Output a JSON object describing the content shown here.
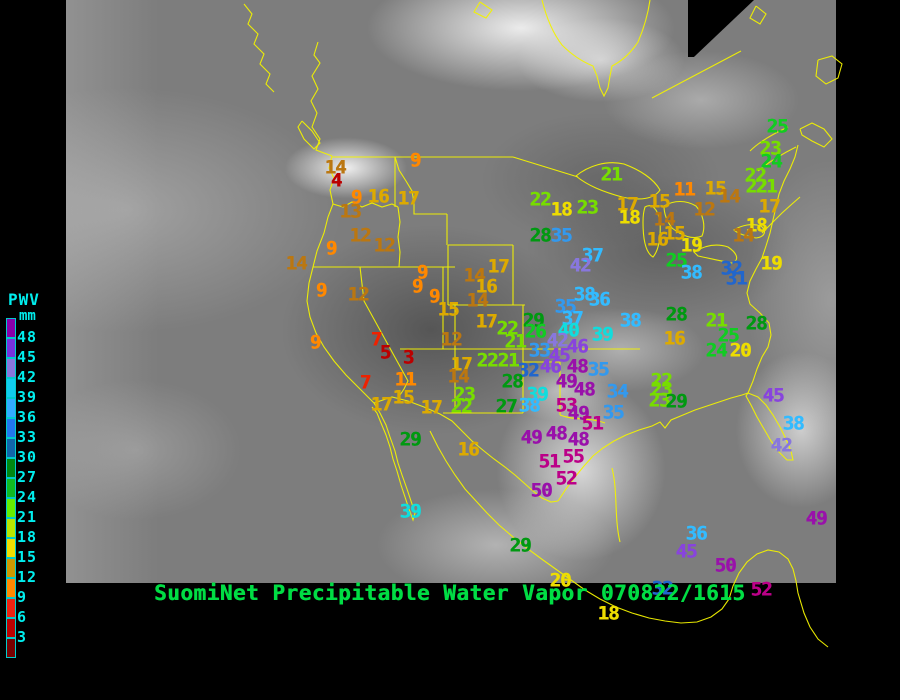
{
  "footer": {
    "title": "SuomiNet Precipitable Water Vapor",
    "timestamp": "070822/1615",
    "text_color": "#00dd44"
  },
  "colorbar": {
    "title": "PWV",
    "units": "mm",
    "label_color": "#00eeee",
    "labels": [
      48,
      45,
      42,
      39,
      36,
      33,
      30,
      27,
      24,
      21,
      18,
      15,
      12,
      9,
      6,
      3
    ],
    "swatch_colors": [
      "#8800aa",
      "#7733dd",
      "#8877dd",
      "#11ccee",
      "#33aaff",
      "#2277ee",
      "#1166aa",
      "#008811",
      "#11bb22",
      "#66ee00",
      "#b8e600",
      "#f0dd00",
      "#cc9900",
      "#ff8800",
      "#ee2211",
      "#bb0000",
      "#770000"
    ]
  },
  "map": {
    "outline_color": "#f2f200"
  },
  "pwv_palette": {
    "3": "#bb0000",
    "6": "#ee2200",
    "9": "#ff8800",
    "12": "#bb7711",
    "15": "#ddaa00",
    "18": "#eedd00",
    "21": "#77dd00",
    "24": "#11cc22",
    "27": "#009911",
    "30": "#2266cc",
    "33": "#3399ee",
    "36": "#33bbff",
    "39": "#11dddd",
    "42": "#8877dd",
    "45": "#8844dd",
    "48": "#9911aa",
    "51": "#bb0088"
  },
  "stations": [
    [
      14,
      335,
      168
    ],
    [
      4,
      336,
      181
    ],
    [
      9,
      356,
      198
    ],
    [
      16,
      378,
      197
    ],
    [
      17,
      408,
      199
    ],
    [
      13,
      350,
      212
    ],
    [
      9,
      415,
      161
    ],
    [
      12,
      360,
      236
    ],
    [
      12,
      384,
      246
    ],
    [
      9,
      331,
      249
    ],
    [
      14,
      296,
      264
    ],
    [
      9,
      321,
      291
    ],
    [
      12,
      358,
      295
    ],
    [
      9,
      422,
      273
    ],
    [
      9,
      417,
      287
    ],
    [
      9,
      434,
      297
    ],
    [
      15,
      448,
      310
    ],
    [
      14,
      474,
      276
    ],
    [
      17,
      498,
      267
    ],
    [
      16,
      486,
      287
    ],
    [
      14,
      477,
      301
    ],
    [
      17,
      486,
      322
    ],
    [
      12,
      451,
      340
    ],
    [
      17,
      461,
      365
    ],
    [
      14,
      458,
      377
    ],
    [
      9,
      315,
      343
    ],
    [
      7,
      376,
      340
    ],
    [
      5,
      385,
      353
    ],
    [
      3,
      408,
      358
    ],
    [
      11,
      405,
      380
    ],
    [
      7,
      365,
      383
    ],
    [
      15,
      403,
      398
    ],
    [
      17,
      381,
      405
    ],
    [
      17,
      431,
      408
    ],
    [
      23,
      464,
      395
    ],
    [
      22,
      461,
      407
    ],
    [
      22,
      487,
      361
    ],
    [
      21,
      508,
      361
    ],
    [
      29,
      410,
      440
    ],
    [
      16,
      468,
      450
    ],
    [
      39,
      410,
      512
    ],
    [
      29,
      520,
      546
    ],
    [
      22,
      540,
      200
    ],
    [
      18,
      561,
      210
    ],
    [
      23,
      587,
      208
    ],
    [
      21,
      611,
      175
    ],
    [
      17,
      627,
      205
    ],
    [
      18,
      629,
      218
    ],
    [
      15,
      659,
      202
    ],
    [
      14,
      664,
      220
    ],
    [
      11,
      684,
      190
    ],
    [
      12,
      704,
      210
    ],
    [
      15,
      674,
      234
    ],
    [
      16,
      657,
      240
    ],
    [
      19,
      691,
      246
    ],
    [
      28,
      540,
      236
    ],
    [
      35,
      561,
      236
    ],
    [
      37,
      592,
      256
    ],
    [
      42,
      580,
      266
    ],
    [
      25,
      676,
      261
    ],
    [
      38,
      691,
      273
    ],
    [
      38,
      584,
      295
    ],
    [
      36,
      599,
      300
    ],
    [
      35,
      565,
      307
    ],
    [
      37,
      572,
      319
    ],
    [
      38,
      630,
      321
    ],
    [
      40,
      568,
      331
    ],
    [
      39,
      602,
      335
    ],
    [
      42,
      557,
      341
    ],
    [
      33,
      539,
      351
    ],
    [
      46,
      577,
      347
    ],
    [
      45,
      559,
      356
    ],
    [
      46,
      550,
      367
    ],
    [
      48,
      577,
      367
    ],
    [
      35,
      598,
      370
    ],
    [
      32,
      528,
      371
    ],
    [
      29,
      533,
      321
    ],
    [
      26,
      535,
      332
    ],
    [
      22,
      507,
      329
    ],
    [
      21,
      515,
      342
    ],
    [
      28,
      512,
      382
    ],
    [
      27,
      506,
      407
    ],
    [
      39,
      537,
      395
    ],
    [
      38,
      529,
      406
    ],
    [
      49,
      566,
      382
    ],
    [
      48,
      584,
      390
    ],
    [
      34,
      617,
      392
    ],
    [
      35,
      613,
      413
    ],
    [
      53,
      566,
      406
    ],
    [
      49,
      578,
      414
    ],
    [
      51,
      592,
      424
    ],
    [
      28,
      676,
      315
    ],
    [
      16,
      674,
      339
    ],
    [
      25,
      777,
      127
    ],
    [
      23,
      770,
      149
    ],
    [
      24,
      771,
      162
    ],
    [
      22,
      755,
      176
    ],
    [
      22,
      756,
      187
    ],
    [
      21,
      766,
      187
    ],
    [
      15,
      715,
      189
    ],
    [
      14,
      729,
      197
    ],
    [
      17,
      769,
      207
    ],
    [
      18,
      756,
      226
    ],
    [
      14,
      743,
      236
    ],
    [
      19,
      771,
      264
    ],
    [
      32,
      731,
      269
    ],
    [
      31,
      736,
      279
    ],
    [
      21,
      716,
      321
    ],
    [
      28,
      756,
      324
    ],
    [
      25,
      728,
      336
    ],
    [
      24,
      716,
      351
    ],
    [
      20,
      740,
      351
    ],
    [
      22,
      661,
      381
    ],
    [
      23,
      661,
      390
    ],
    [
      23,
      659,
      401
    ],
    [
      29,
      676,
      402
    ],
    [
      45,
      773,
      396
    ],
    [
      38,
      793,
      424
    ],
    [
      42,
      781,
      446
    ],
    [
      49,
      531,
      438
    ],
    [
      48,
      556,
      434
    ],
    [
      48,
      578,
      440
    ],
    [
      51,
      549,
      462
    ],
    [
      55,
      573,
      457
    ],
    [
      52,
      566,
      479
    ],
    [
      50,
      541,
      491
    ],
    [
      20,
      560,
      581
    ],
    [
      18,
      608,
      614
    ],
    [
      36,
      696,
      534
    ],
    [
      45,
      686,
      552
    ],
    [
      50,
      725,
      566
    ],
    [
      52,
      761,
      590
    ],
    [
      49,
      816,
      519
    ],
    [
      32,
      662,
      589
    ]
  ]
}
